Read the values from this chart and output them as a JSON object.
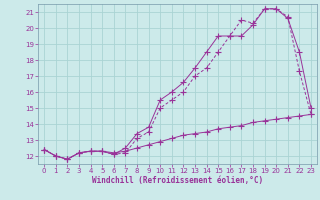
{
  "xlabel": "Windchill (Refroidissement éolien,°C)",
  "bg_color": "#cceaea",
  "line_color": "#993399",
  "grid_color": "#aad4d4",
  "xmin": 0,
  "xmax": 23,
  "ymin": 12,
  "ymax": 21,
  "line1_x": [
    0,
    1,
    2,
    3,
    4,
    5,
    6,
    7,
    8,
    9,
    10,
    11,
    12,
    13,
    14,
    15,
    16,
    17,
    18,
    19,
    20,
    21,
    22,
    23
  ],
  "line1_y": [
    12.4,
    12.0,
    11.8,
    12.2,
    12.3,
    12.3,
    12.1,
    12.5,
    13.4,
    13.8,
    15.5,
    16.0,
    16.6,
    17.5,
    18.5,
    19.5,
    19.5,
    19.5,
    20.2,
    21.2,
    21.2,
    20.6,
    18.5,
    15.0
  ],
  "line2_x": [
    0,
    1,
    2,
    3,
    4,
    5,
    6,
    7,
    8,
    9,
    10,
    11,
    12,
    13,
    14,
    15,
    16,
    17,
    18,
    19,
    20,
    21,
    22,
    23
  ],
  "line2_y": [
    12.4,
    12.0,
    11.8,
    12.2,
    12.3,
    12.3,
    12.1,
    12.2,
    13.1,
    13.5,
    15.0,
    15.5,
    16.0,
    17.0,
    17.5,
    18.5,
    19.5,
    20.5,
    20.3,
    21.2,
    21.2,
    20.7,
    17.3,
    14.6
  ],
  "line3_x": [
    0,
    1,
    2,
    3,
    4,
    5,
    6,
    7,
    8,
    9,
    10,
    11,
    12,
    13,
    14,
    15,
    16,
    17,
    18,
    19,
    20,
    21,
    22,
    23
  ],
  "line3_y": [
    12.4,
    12.0,
    11.8,
    12.2,
    12.3,
    12.3,
    12.2,
    12.3,
    12.5,
    12.7,
    12.9,
    13.1,
    13.3,
    13.4,
    13.5,
    13.7,
    13.8,
    13.9,
    14.1,
    14.2,
    14.3,
    14.4,
    14.5,
    14.6
  ]
}
